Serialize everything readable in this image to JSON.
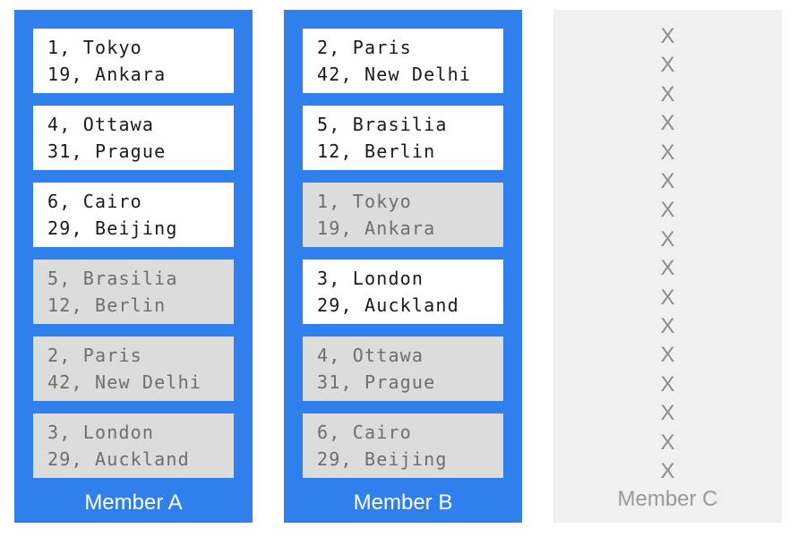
{
  "colors": {
    "member-blue": "#2F80ED",
    "card-white": "#FFFFFF",
    "card-gray": "#DCDCDC",
    "text-dark": "#1A1A1A",
    "text-muted": "#6E6E6E",
    "panel-gray": "#F0F0F0",
    "x-gray": "#8C8C8C",
    "label-light": "#FFFFFF",
    "label-gray": "#9A9A9A"
  },
  "members": [
    {
      "label": "Member A",
      "state": "up",
      "cards": [
        {
          "state": "active",
          "lines": [
            "1, Tokyo",
            "19, Ankara"
          ]
        },
        {
          "state": "active",
          "lines": [
            "4, Ottawa",
            "31, Prague"
          ]
        },
        {
          "state": "active",
          "lines": [
            "6, Cairo",
            "29, Beijing"
          ]
        },
        {
          "state": "replica",
          "lines": [
            "5, Brasilia",
            "12, Berlin"
          ]
        },
        {
          "state": "replica",
          "lines": [
            "2, Paris",
            "42, New Delhi"
          ]
        },
        {
          "state": "replica",
          "lines": [
            "3, London",
            "29, Auckland"
          ]
        }
      ]
    },
    {
      "label": "Member B",
      "state": "up",
      "cards": [
        {
          "state": "active",
          "lines": [
            "2, Paris",
            "42, New Delhi"
          ]
        },
        {
          "state": "active",
          "lines": [
            "5, Brasilia",
            "12, Berlin"
          ]
        },
        {
          "state": "replica",
          "lines": [
            "1, Tokyo",
            "19, Ankara"
          ]
        },
        {
          "state": "active",
          "lines": [
            "3, London",
            "29, Auckland"
          ]
        },
        {
          "state": "replica",
          "lines": [
            "4, Ottawa",
            "31, Prague"
          ]
        },
        {
          "state": "replica",
          "lines": [
            "6, Cairo",
            "29, Beijing"
          ]
        }
      ]
    },
    {
      "label": "Member C",
      "state": "down",
      "x_marks": [
        "X",
        "X",
        "X",
        "X",
        "X",
        "X",
        "X",
        "X",
        "X",
        "X",
        "X",
        "X",
        "X",
        "X",
        "X",
        "X"
      ]
    }
  ]
}
